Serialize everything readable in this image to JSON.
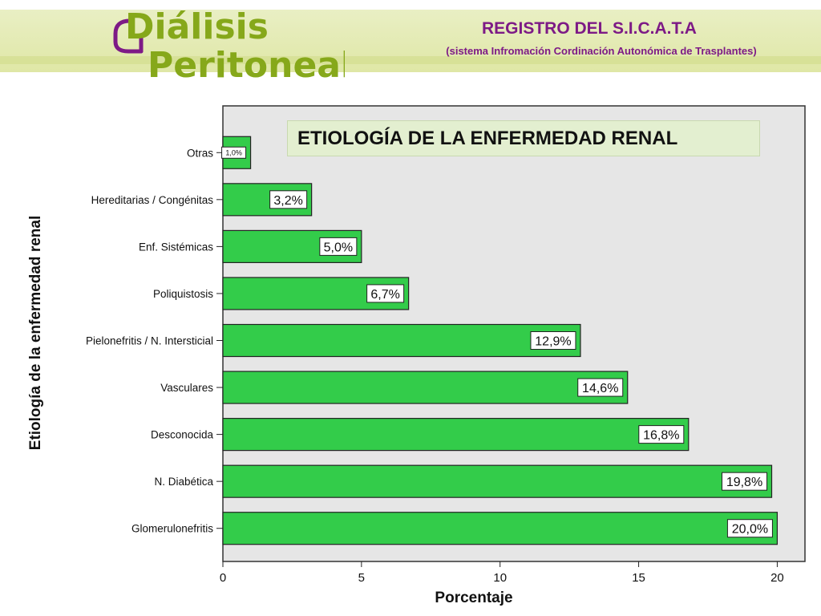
{
  "header": {
    "logo_line1": "Diálisis",
    "logo_line2": "Peritoneal",
    "registry_title": "REGISTRO DEL S.I.C.A.T.A",
    "registry_subtitle": "(sistema Infromación Cordinación Autonómica de Trasplantes)"
  },
  "colors": {
    "banner": "#dfe7a6",
    "accent_purple": "#7d1a86",
    "logo_green": "#86a81a",
    "bar_fill": "#33cc4a",
    "plot_bg": "#e6e6e6"
  },
  "chart_data": {
    "type": "bar",
    "orientation": "horizontal",
    "title": "ETIOLOGÍA DE LA ENFERMEDAD RENAL",
    "xlabel": "Porcentaje",
    "ylabel": "Etiología de la enfermedad renal",
    "xlim": [
      0,
      21
    ],
    "xticks": [
      0,
      5,
      10,
      15,
      20
    ],
    "grid": false,
    "categories": [
      "Otras",
      "Hereditarias / Congénitas",
      "Enf. Sistémicas",
      "Poliquistosis",
      "Pielonefritis / N. Intersticial",
      "Vasculares",
      "Desconocida",
      "N. Diabética",
      "Glomerulonefritis"
    ],
    "values": [
      1.0,
      3.2,
      5.0,
      6.7,
      12.9,
      14.6,
      16.8,
      19.8,
      20.0
    ],
    "data_labels": [
      "1,0%",
      "3,2%",
      "5,0%",
      "6,7%",
      "12,9%",
      "14,6%",
      "16,8%",
      "19,8%",
      "20,0%"
    ]
  }
}
